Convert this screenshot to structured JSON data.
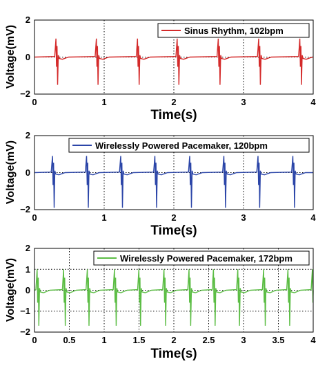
{
  "chart_data": [
    {
      "type": "line",
      "title": "",
      "xlabel": "Time(s)",
      "ylabel": "Voltage(mV)",
      "xlim": [
        0,
        4
      ],
      "ylim": [
        -2,
        2
      ],
      "xticks": [
        0,
        1,
        2,
        3,
        4
      ],
      "yticks": [
        -2,
        0,
        2
      ],
      "grid": true,
      "legend_position": "top-right",
      "series": [
        {
          "name": "Sinus Rhythm, 102bpm",
          "color": "#d42a2a",
          "rate_bpm": 102,
          "beat_times": [
            0.32,
            0.9,
            1.49,
            2.06,
            2.65,
            3.23,
            3.82
          ],
          "spike_max": 1.0,
          "spike_min": -1.5
        }
      ]
    },
    {
      "type": "line",
      "title": "",
      "xlabel": "Time(s)",
      "ylabel": "Voltage(mV)",
      "xlim": [
        0,
        4
      ],
      "ylim": [
        -2,
        2
      ],
      "xticks": [
        0,
        1,
        2,
        3,
        4
      ],
      "yticks": [
        -2,
        0,
        2
      ],
      "grid": true,
      "legend_position": "top-right",
      "series": [
        {
          "name": "Wirelessly Powered Pacemaker, 120bpm",
          "color": "#2b45a8",
          "rate_bpm": 120,
          "beat_times": [
            0.27,
            0.76,
            1.25,
            1.74,
            2.24,
            2.73,
            3.22,
            3.72
          ],
          "spike_max": 0.9,
          "spike_min": -1.9
        }
      ]
    },
    {
      "type": "line",
      "title": "",
      "xlabel": "Time(s)",
      "ylabel": "Voltage(mV)",
      "xlim": [
        0,
        4
      ],
      "ylim": [
        -2,
        2
      ],
      "xticks": [
        0,
        0.5,
        1,
        1.5,
        2,
        2.5,
        3,
        3.5,
        4
      ],
      "yticks": [
        -2,
        -1,
        0,
        1,
        2
      ],
      "grid": true,
      "legend_position": "top-right",
      "series": [
        {
          "name": "Wirelessly Powered Pacemaker, 172bpm",
          "color": "#5cbd45",
          "rate_bpm": 172,
          "beat_times": [
            0.05,
            0.43,
            0.77,
            1.16,
            1.51,
            1.87,
            2.23,
            2.58,
            2.93,
            3.3,
            3.65,
            4.0
          ],
          "spike_max": 1.0,
          "spike_min": -1.7
        }
      ]
    }
  ]
}
